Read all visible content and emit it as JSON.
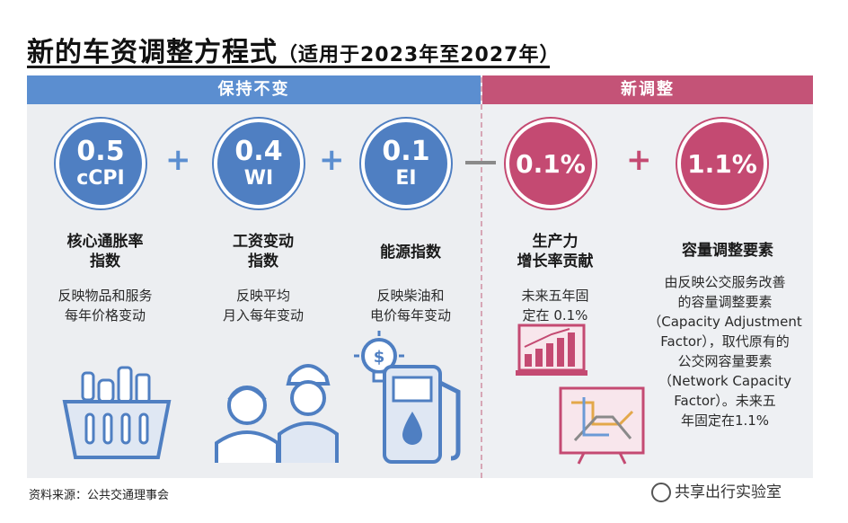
{
  "title": {
    "main": "新的车资调整方程式",
    "sub": "（适用于2023年至2027年）"
  },
  "banners": {
    "left": "保持不变",
    "right": "新调整"
  },
  "items": [
    {
      "value": "0.5",
      "code": "cCPI",
      "heading": "核心通胀率\n指数",
      "desc": "反映物品和服务\n每年价格变动"
    },
    {
      "value": "0.4",
      "code": "WI",
      "heading": "工资变动\n指数",
      "desc": "反映平均\n月入每年变动"
    },
    {
      "value": "0.1",
      "code": "EI",
      "heading": "能源指数",
      "desc": "反映柴油和\n电价每年变动"
    },
    {
      "value": "0.1%",
      "code": "",
      "heading": "生产力\n增长率贡献",
      "desc": "未来五年固\n定在 0.1%"
    },
    {
      "value": "1.1%",
      "code": "",
      "heading": "容量调整要素",
      "desc": "由反映公交服务改善\n的容量调整要素\n（Capacity Adjustment\nFactor），取代原有的\n公交网容量要素\n（Network Capacity\nFactor）。未来五\n年固定在1.1%"
    }
  ],
  "operators": [
    "+",
    "+",
    "-",
    "+"
  ],
  "source": "资料来源：公共交通理事会",
  "credit": "共享出行实验室",
  "colors": {
    "blue": "#4f7fc2",
    "pink": "#c44a72"
  }
}
